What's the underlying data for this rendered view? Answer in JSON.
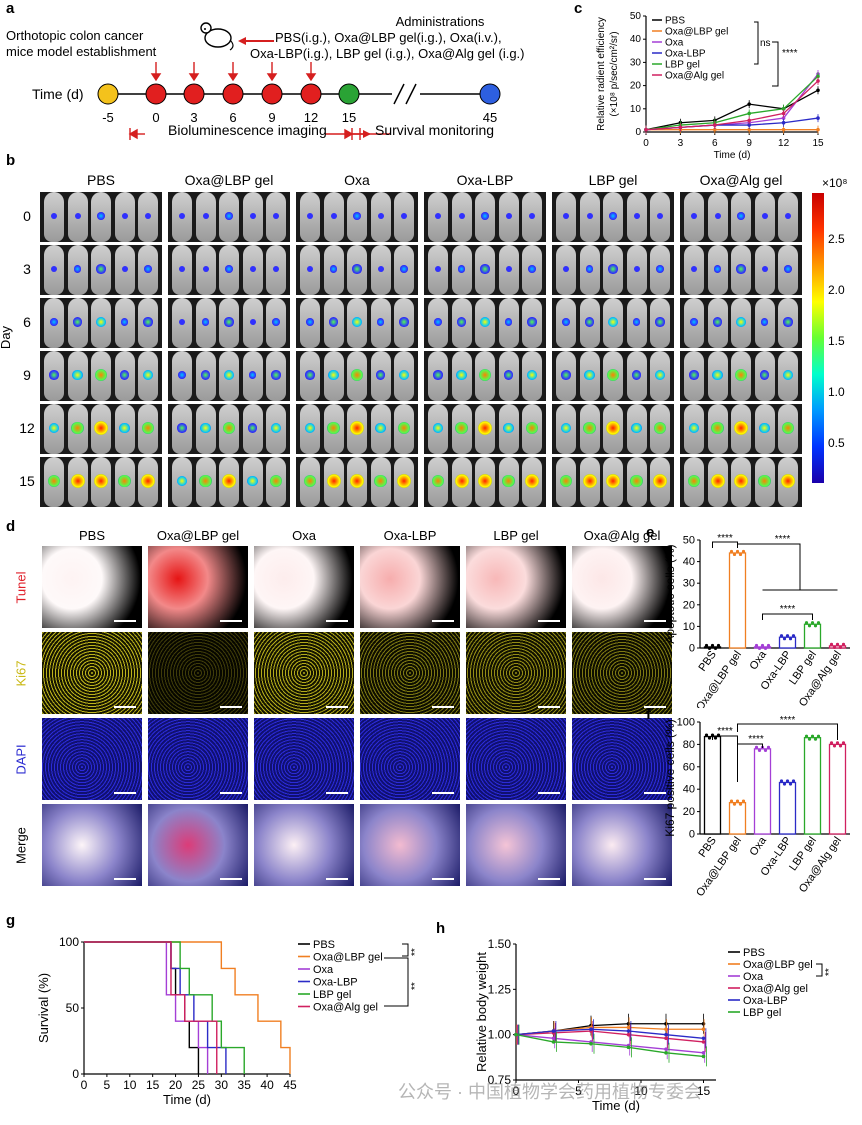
{
  "panel_labels": {
    "a": "a",
    "b": "b",
    "c": "c",
    "d": "d",
    "e": "e",
    "f": "f",
    "g": "g",
    "h": "h"
  },
  "panel_a": {
    "title_left_1": "Orthotopic colon cancer",
    "title_left_2": "mice model establishment",
    "admin_title": "Administrations",
    "admin_line1": "PBS(i.g.), Oxa@LBP gel(i.g.), Oxa(i.v.),",
    "admin_line2": "Oxa-LBP(i.g.), LBP gel (i.g.), Oxa@Alg gel (i.g.)",
    "time_label": "Time (d)",
    "ticks": [
      "-5",
      "0",
      "3",
      "6",
      "9",
      "12",
      "15",
      "45"
    ],
    "bli_label": "Bioluminescence imaging",
    "survival_label": "Survival monitoring"
  },
  "panel_c": {
    "ylabel_1": "Relative radient efficiency",
    "ylabel_2": "(×10⁸ p/sec/cm²/sr)",
    "xlabel": "Time (d)",
    "ns": "ns",
    "stars": "****",
    "legend": [
      "PBS",
      "Oxa@LBP gel",
      "Oxa",
      "Oxa-LBP",
      "LBP gel",
      "Oxa@Alg gel"
    ],
    "colors": [
      "#000000",
      "#f07f22",
      "#a43fd6",
      "#2b2bc7",
      "#2aa82a",
      "#d02060"
    ],
    "yticks": [
      "0",
      "10",
      "20",
      "30",
      "40",
      "50"
    ],
    "xticks": [
      "0",
      "3",
      "6",
      "9",
      "12",
      "15"
    ]
  },
  "panel_b": {
    "groups": [
      "PBS",
      "Oxa@LBP gel",
      "Oxa",
      "Oxa-LBP",
      "LBP gel",
      "Oxa@Alg gel"
    ],
    "day_label": "Day",
    "days": [
      "0",
      "3",
      "6",
      "9",
      "12",
      "15"
    ],
    "colorbar_unit": "×10⁸",
    "colorbar_ticks": [
      "2.5",
      "2.0",
      "1.5",
      "1.0",
      "0.5"
    ]
  },
  "panel_d": {
    "groups": [
      "PBS",
      "Oxa@LBP gel",
      "Oxa",
      "Oxa-LBP",
      "LBP gel",
      "Oxa@Alg gel"
    ],
    "rows": [
      "Tunel",
      "Ki67",
      "DAPI",
      "Merge"
    ]
  },
  "panel_e": {
    "ylabel": "Apoptotic cells (%)",
    "yticks": [
      "0",
      "10",
      "20",
      "30",
      "40",
      "50"
    ],
    "categories": [
      "PBS",
      "Oxa@LBP gel",
      "Oxa",
      "Oxa-LBP",
      "LBP gel",
      "Oxa@Alg gel"
    ],
    "stars": [
      "****",
      "****",
      "****"
    ]
  },
  "panel_f": {
    "ylabel": "Ki67 positive cells (%)",
    "yticks": [
      "0",
      "20",
      "40",
      "60",
      "80",
      "100"
    ],
    "categories": [
      "PBS",
      "Oxa@LBP gel",
      "Oxa",
      "Oxa-LBP",
      "LBP gel",
      "Oxa@Alg gel"
    ],
    "stars": [
      "****",
      "****",
      "****"
    ]
  },
  "panel_g": {
    "ylabel": "Survival (%)",
    "xlabel": "Time (d)",
    "yticks": [
      "0",
      "50",
      "100"
    ],
    "xticks": [
      "0",
      "5",
      "10",
      "15",
      "20",
      "25",
      "30",
      "35",
      "40",
      "45"
    ],
    "legend": [
      "PBS",
      "Oxa@LBP gel",
      "Oxa",
      "Oxa-LBP",
      "LBP gel",
      "Oxa@Alg gel"
    ],
    "colors": [
      "#000000",
      "#f07f22",
      "#a43fd6",
      "#2b2bc7",
      "#2aa82a",
      "#d02060"
    ],
    "stars": [
      "**",
      "**"
    ]
  },
  "panel_h": {
    "ylabel": "Relative body weight",
    "xlabel": "Time (d)",
    "yticks": [
      "0.75",
      "1.00",
      "1.25",
      "1.50"
    ],
    "xticks": [
      "0",
      "5",
      "10",
      "15"
    ],
    "legend": [
      "PBS",
      "Oxa@LBP gel",
      "Oxa",
      "Oxa@Alg gel",
      "Oxa-LBP",
      "LBP gel"
    ],
    "colors": [
      "#000000",
      "#f07f22",
      "#a43fd6",
      "#d02060",
      "#2b2bc7",
      "#2aa82a"
    ],
    "stars": "**"
  },
  "watermark": "公众号 · 中国植物学会药用植物专委会",
  "chart_data": [
    {
      "type": "line",
      "panel": "c",
      "xlabel": "Time (d)",
      "ylabel": "Relative radient efficiency (×10⁸ p/sec/cm²/sr)",
      "x": [
        0,
        3,
        6,
        9,
        12,
        15
      ],
      "ylim": [
        0,
        50
      ],
      "series": [
        {
          "name": "PBS",
          "values": [
            1,
            4,
            5,
            12,
            10,
            18
          ]
        },
        {
          "name": "Oxa@LBP gel",
          "values": [
            1,
            1,
            1,
            1,
            1,
            1
          ]
        },
        {
          "name": "Oxa",
          "values": [
            1,
            2,
            3,
            4,
            6,
            25
          ]
        },
        {
          "name": "Oxa-LBP",
          "values": [
            1,
            2,
            3,
            3,
            4,
            6
          ]
        },
        {
          "name": "LBP gel",
          "values": [
            1,
            3,
            4,
            8,
            10,
            24
          ]
        },
        {
          "name": "Oxa@Alg gel",
          "values": [
            1,
            2,
            3,
            5,
            8,
            22
          ]
        }
      ]
    },
    {
      "type": "bar",
      "panel": "e",
      "ylabel": "Apoptotic cells (%)",
      "ylim": [
        0,
        50
      ],
      "categories": [
        "PBS",
        "Oxa@LBP gel",
        "Oxa",
        "Oxa-LBP",
        "LBP gel",
        "Oxa@Alg gel"
      ],
      "values": [
        0.5,
        44,
        0.5,
        5,
        11,
        1
      ]
    },
    {
      "type": "bar",
      "panel": "f",
      "ylabel": "Ki67 positive cells (%)",
      "ylim": [
        0,
        100
      ],
      "categories": [
        "PBS",
        "Oxa@LBP gel",
        "Oxa",
        "Oxa-LBP",
        "LBP gel",
        "Oxa@Alg gel"
      ],
      "values": [
        87,
        28,
        76,
        46,
        86,
        80
      ]
    },
    {
      "type": "line",
      "panel": "g",
      "xlabel": "Time (d)",
      "ylabel": "Survival (%)",
      "xlim": [
        0,
        45
      ],
      "ylim": [
        0,
        100
      ],
      "series": [
        {
          "name": "PBS",
          "steps": [
            [
              0,
              100
            ],
            [
              19,
              100
            ],
            [
              19,
              80
            ],
            [
              20,
              80
            ],
            [
              20,
              60
            ],
            [
              22,
              60
            ],
            [
              22,
              40
            ],
            [
              23,
              40
            ],
            [
              23,
              20
            ],
            [
              25,
              20
            ],
            [
              25,
              0
            ]
          ]
        },
        {
          "name": "Oxa@LBP gel",
          "steps": [
            [
              0,
              100
            ],
            [
              30,
              100
            ],
            [
              30,
              80
            ],
            [
              33,
              80
            ],
            [
              33,
              60
            ],
            [
              38,
              60
            ],
            [
              38,
              40
            ],
            [
              43,
              40
            ],
            [
              43,
              20
            ],
            [
              45,
              20
            ],
            [
              45,
              0
            ]
          ]
        },
        {
          "name": "Oxa",
          "steps": [
            [
              0,
              100
            ],
            [
              18,
              100
            ],
            [
              18,
              60
            ],
            [
              20,
              60
            ],
            [
              20,
              40
            ],
            [
              25,
              40
            ],
            [
              25,
              20
            ],
            [
              27,
              20
            ],
            [
              27,
              0
            ]
          ]
        },
        {
          "name": "Oxa-LBP",
          "steps": [
            [
              0,
              100
            ],
            [
              19,
              100
            ],
            [
              19,
              80
            ],
            [
              21,
              80
            ],
            [
              21,
              60
            ],
            [
              24,
              60
            ],
            [
              24,
              40
            ],
            [
              27,
              40
            ],
            [
              27,
              20
            ],
            [
              31,
              20
            ],
            [
              31,
              0
            ]
          ]
        },
        {
          "name": "LBP gel",
          "steps": [
            [
              0,
              100
            ],
            [
              21,
              100
            ],
            [
              21,
              80
            ],
            [
              23,
              80
            ],
            [
              23,
              60
            ],
            [
              28,
              60
            ],
            [
              28,
              40
            ],
            [
              30,
              40
            ],
            [
              30,
              20
            ],
            [
              35,
              20
            ],
            [
              35,
              0
            ]
          ]
        },
        {
          "name": "Oxa@Alg gel",
          "steps": [
            [
              0,
              100
            ],
            [
              19,
              100
            ],
            [
              19,
              60
            ],
            [
              22,
              60
            ],
            [
              22,
              40
            ],
            [
              29,
              40
            ],
            [
              29,
              0
            ]
          ]
        }
      ]
    },
    {
      "type": "line",
      "panel": "h",
      "xlabel": "Time (d)",
      "ylabel": "Relative body weight",
      "x": [
        0,
        3,
        6,
        9,
        12,
        15
      ],
      "ylim": [
        0.75,
        1.5
      ],
      "series": [
        {
          "name": "PBS",
          "values": [
            1.0,
            1.02,
            1.05,
            1.06,
            1.06,
            1.06
          ]
        },
        {
          "name": "Oxa@LBP gel",
          "values": [
            1.0,
            1.02,
            1.04,
            1.04,
            1.03,
            1.03
          ]
        },
        {
          "name": "Oxa",
          "values": [
            1.0,
            0.98,
            0.96,
            0.94,
            0.92,
            0.9
          ]
        },
        {
          "name": "Oxa@Alg gel",
          "values": [
            1.0,
            1.01,
            1.02,
            1.0,
            0.98,
            0.96
          ]
        },
        {
          "name": "Oxa-LBP",
          "values": [
            1.0,
            1.02,
            1.03,
            1.02,
            1.0,
            0.98
          ]
        },
        {
          "name": "LBP gel",
          "values": [
            1.0,
            0.96,
            0.95,
            0.93,
            0.9,
            0.88
          ]
        }
      ]
    }
  ]
}
